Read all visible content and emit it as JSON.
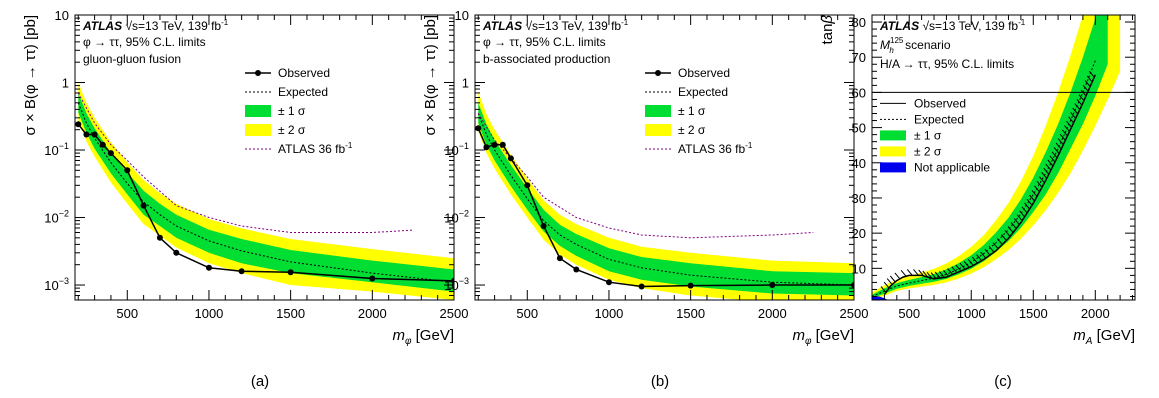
{
  "chart_data": [
    {
      "type": "line",
      "panel_label": "(a)",
      "y_log": true,
      "ylim": [
        0.0006,
        10
      ],
      "xlim": [
        180,
        2500
      ],
      "xlabel_main": "m",
      "xlabel_sub": "φ",
      "xlabel_unit": " [GeV]",
      "ylabel": "σ × B(φ → ττ) [pb]",
      "xticks": [
        {
          "v": 500,
          "t": "500"
        },
        {
          "v": 1000,
          "t": "1000"
        },
        {
          "v": 1500,
          "t": "1500"
        },
        {
          "v": 2000,
          "t": "2000"
        },
        {
          "v": 2500,
          "t": "2500"
        }
      ],
      "yticks": [
        {
          "v": 0.001,
          "b": "10",
          "e": "−3"
        },
        {
          "v": 0.01,
          "b": "10",
          "e": "−2"
        },
        {
          "v": 0.1,
          "b": "10",
          "e": "−1"
        },
        {
          "v": 1,
          "t": "1"
        },
        {
          "v": 10,
          "t": "10"
        }
      ],
      "text": {
        "atlas": "ATLAS",
        "energy": "√s=13 TeV, 139 fb",
        "energy_sup": "-1",
        "line2": "φ → ττ, 95% C.L. limits",
        "line3": "gluon-gluon fusion"
      },
      "legend": {
        "observed": "Observed",
        "expected": "Expected",
        "one_sigma": "± 1 σ",
        "two_sigma": "± 2 σ",
        "prev": "ATLAS 36 fb",
        "prev_sup": "-1"
      },
      "observed": {
        "x": [
          200,
          250,
          300,
          350,
          400,
          500,
          600,
          700,
          800,
          1000,
          1200,
          1500,
          2000,
          2500
        ],
        "y": [
          0.24,
          0.17,
          0.17,
          0.12,
          0.09,
          0.05,
          0.015,
          0.005,
          0.003,
          0.0018,
          0.0016,
          0.00155,
          0.00125,
          0.00115
        ]
      },
      "expected": {
        "x": [
          200,
          250,
          300,
          400,
          500,
          600,
          700,
          800,
          1000,
          1200,
          1500,
          2000,
          2500
        ],
        "y": [
          0.5,
          0.25,
          0.15,
          0.065,
          0.032,
          0.017,
          0.011,
          0.0075,
          0.0045,
          0.0032,
          0.0022,
          0.0015,
          0.0011
        ]
      },
      "previous": {
        "x": [
          200,
          300,
          400,
          500,
          600,
          800,
          1000,
          1200,
          1500,
          2000,
          2250
        ],
        "y": [
          0.7,
          0.25,
          0.12,
          0.07,
          0.04,
          0.015,
          0.01,
          0.0075,
          0.006,
          0.006,
          0.0065
        ]
      },
      "band_one_sigma": {
        "x": [
          200,
          250,
          300,
          400,
          500,
          600,
          700,
          800,
          1000,
          1200,
          1500,
          2000,
          2500
        ],
        "lo": [
          0.36,
          0.18,
          0.105,
          0.045,
          0.022,
          0.011,
          0.0075,
          0.005,
          0.003,
          0.0021,
          0.0015,
          0.0011,
          0.0008
        ],
        "hi": [
          0.7,
          0.35,
          0.21,
          0.09,
          0.046,
          0.025,
          0.016,
          0.011,
          0.0066,
          0.0048,
          0.0033,
          0.0023,
          0.0017
        ]
      },
      "band_two_sigma": {
        "x": [
          200,
          250,
          300,
          400,
          500,
          600,
          700,
          800,
          1000,
          1200,
          1500,
          2000,
          2500
        ],
        "lo": [
          0.27,
          0.135,
          0.08,
          0.033,
          0.016,
          0.008,
          0.0054,
          0.0036,
          0.0021,
          0.0015,
          0.001,
          0.0008,
          0.0006
        ],
        "hi": [
          1.0,
          0.5,
          0.3,
          0.13,
          0.066,
          0.036,
          0.023,
          0.016,
          0.0095,
          0.0069,
          0.0048,
          0.0034,
          0.0025
        ]
      }
    },
    {
      "type": "line",
      "panel_label": "(b)",
      "y_log": true,
      "ylim": [
        0.0006,
        10
      ],
      "xlim": [
        180,
        2500
      ],
      "xlabel_main": "m",
      "xlabel_sub": "φ",
      "xlabel_unit": " [GeV]",
      "ylabel": "σ × B(φ → ττ) [pb]",
      "xticks": [
        {
          "v": 500,
          "t": "500"
        },
        {
          "v": 1000,
          "t": "1000"
        },
        {
          "v": 1500,
          "t": "1500"
        },
        {
          "v": 2000,
          "t": "2000"
        },
        {
          "v": 2500,
          "t": "2500"
        }
      ],
      "yticks": [
        {
          "v": 0.001,
          "b": "10",
          "e": "−3"
        },
        {
          "v": 0.01,
          "b": "10",
          "e": "−2"
        },
        {
          "v": 0.1,
          "b": "10",
          "e": "−1"
        },
        {
          "v": 1,
          "t": "1"
        },
        {
          "v": 10,
          "t": "10"
        }
      ],
      "text": {
        "atlas": "ATLAS",
        "energy": "√s=13 TeV, 139 fb",
        "energy_sup": "-1",
        "line2": "φ → ττ, 95% C.L. limits",
        "line3": "b-associated production"
      },
      "legend": {
        "observed": "Observed",
        "expected": "Expected",
        "one_sigma": "± 1 σ",
        "two_sigma": "± 2 σ",
        "prev": "ATLAS 36 fb",
        "prev_sup": "-1"
      },
      "observed": {
        "x": [
          200,
          250,
          300,
          350,
          400,
          500,
          600,
          700,
          800,
          1000,
          1200,
          1500,
          2000,
          2500
        ],
        "y": [
          0.21,
          0.11,
          0.12,
          0.12,
          0.075,
          0.03,
          0.0075,
          0.0025,
          0.0017,
          0.0011,
          0.00095,
          0.00098,
          0.001,
          0.001
        ]
      },
      "expected": {
        "x": [
          200,
          250,
          300,
          400,
          500,
          600,
          700,
          800,
          1000,
          1200,
          1500,
          2000,
          2500
        ],
        "y": [
          0.35,
          0.17,
          0.1,
          0.042,
          0.019,
          0.009,
          0.0055,
          0.004,
          0.0024,
          0.0018,
          0.0014,
          0.0011,
          0.001
        ]
      },
      "previous": {
        "x": [
          200,
          300,
          400,
          500,
          600,
          800,
          1000,
          1200,
          1500,
          2000,
          2250
        ],
        "y": [
          0.35,
          0.14,
          0.075,
          0.04,
          0.02,
          0.01,
          0.007,
          0.0055,
          0.005,
          0.0055,
          0.006
        ]
      },
      "band_one_sigma": {
        "x": [
          200,
          250,
          300,
          400,
          500,
          600,
          700,
          800,
          1000,
          1200,
          1500,
          2000,
          2500
        ],
        "lo": [
          0.25,
          0.12,
          0.07,
          0.029,
          0.013,
          0.0062,
          0.0038,
          0.0027,
          0.0016,
          0.0012,
          0.00095,
          0.00075,
          0.0007
        ],
        "hi": [
          0.5,
          0.24,
          0.14,
          0.06,
          0.027,
          0.013,
          0.0078,
          0.0057,
          0.0035,
          0.0026,
          0.0021,
          0.0016,
          0.0015
        ]
      },
      "band_two_sigma": {
        "x": [
          200,
          250,
          300,
          400,
          500,
          600,
          700,
          800,
          1000,
          1200,
          1500,
          2000,
          2500
        ],
        "lo": [
          0.19,
          0.09,
          0.053,
          0.022,
          0.01,
          0.0047,
          0.0028,
          0.002,
          0.0012,
          0.0009,
          0.0007,
          0.00055,
          0.0005
        ],
        "hi": [
          0.72,
          0.34,
          0.2,
          0.085,
          0.038,
          0.018,
          0.011,
          0.008,
          0.005,
          0.0037,
          0.003,
          0.0023,
          0.0021
        ]
      }
    },
    {
      "type": "area",
      "panel_label": "(c)",
      "y_log": false,
      "ylim": [
        1,
        82
      ],
      "xlim": [
        200,
        2320
      ],
      "xlabel_main": "m",
      "xlabel_sub": "A",
      "xlabel_unit": " [GeV]",
      "ylabel": "tanβ",
      "xticks": [
        {
          "v": 500,
          "t": "500"
        },
        {
          "v": 1000,
          "t": "1000"
        },
        {
          "v": 1500,
          "t": "1500"
        },
        {
          "v": 2000,
          "t": "2000"
        }
      ],
      "yticks": [
        {
          "v": 10,
          "t": "10"
        },
        {
          "v": 20,
          "t": "20"
        },
        {
          "v": 30,
          "t": "30"
        },
        {
          "v": 40,
          "t": "40"
        },
        {
          "v": 50,
          "t": "50"
        },
        {
          "v": 60,
          "t": "60"
        },
        {
          "v": 70,
          "t": "70"
        },
        {
          "v": 80,
          "t": "80"
        }
      ],
      "text": {
        "atlas": "ATLAS",
        "energy": "√s=13 TeV, 139 fb",
        "energy_sup": "-1",
        "line2": "M",
        "line2_sub": "h",
        "line2_sup": "125",
        "line2_rest": " scenario",
        "line3": "H/A → ττ, 95% C.L. limits"
      },
      "legend": {
        "observed": "Observed",
        "expected": "Expected",
        "one_sigma": "± 1 σ",
        "two_sigma": "± 2 σ",
        "na": "Not applicable"
      },
      "legend_top_line_y": 60,
      "observed": {
        "x": [
          300,
          350,
          400,
          450,
          500,
          600,
          700,
          800,
          900,
          1000,
          1100,
          1200,
          1300,
          1400,
          1500,
          1600,
          1700,
          1800,
          1900,
          2000
        ],
        "y": [
          2.5,
          5,
          6.5,
          7.5,
          8,
          8,
          7,
          7.5,
          9,
          10.5,
          12.5,
          15,
          18.5,
          23,
          28.5,
          35,
          42,
          49.5,
          57,
          65
        ]
      },
      "expected": {
        "x": [
          200,
          300,
          400,
          500,
          600,
          700,
          800,
          900,
          1000,
          1100,
          1200,
          1300,
          1400,
          1500,
          1600,
          1700,
          1800,
          1900,
          2000
        ],
        "y": [
          2,
          3.5,
          5,
          5.8,
          6.5,
          7.2,
          8.3,
          9.8,
          11.7,
          14.2,
          17.3,
          21,
          25.5,
          31,
          37,
          44,
          52,
          60,
          69
        ]
      },
      "band_one_sigma": {
        "x": [
          200,
          300,
          400,
          500,
          600,
          700,
          800,
          900,
          1000,
          1100,
          1200,
          1300,
          1400,
          1500,
          1600,
          1700,
          1800,
          1900,
          2000,
          2100
        ],
        "lo": [
          1.5,
          2.8,
          4.2,
          5,
          5.6,
          6.2,
          7,
          8.3,
          9.9,
          12,
          14.7,
          17.8,
          21.5,
          26,
          31,
          37,
          44,
          51,
          59,
          68
        ],
        "hi": [
          2.5,
          4.3,
          5.8,
          6.7,
          7.5,
          8.4,
          9.7,
          11.5,
          13.7,
          16.6,
          20.2,
          24.4,
          29.6,
          35.8,
          43,
          51,
          60,
          70,
          81,
          93
        ]
      },
      "band_two_sigma": {
        "x": [
          200,
          300,
          400,
          500,
          600,
          700,
          800,
          900,
          1000,
          1100,
          1200,
          1300,
          1400,
          1500,
          1600,
          1700,
          1800,
          1900,
          2000,
          2100,
          2200
        ],
        "lo": [
          1.2,
          2.2,
          3.6,
          4.3,
          4.8,
          5.3,
          6,
          7.1,
          8.5,
          10.3,
          12.6,
          15.2,
          18.4,
          22.2,
          26.5,
          31.5,
          37,
          43.5,
          50.5,
          58,
          66
        ],
        "hi": [
          3.2,
          5.2,
          6.8,
          7.8,
          8.8,
          9.9,
          11.4,
          13.5,
          16.1,
          19.4,
          23.7,
          28.6,
          34.7,
          42,
          50.5,
          60,
          70.5,
          82,
          95,
          108,
          121
        ]
      },
      "not_applicable": {
        "x": [
          200,
          260,
          300,
          330
        ],
        "y": [
          2.2,
          2,
          1.5,
          1
        ]
      }
    }
  ]
}
